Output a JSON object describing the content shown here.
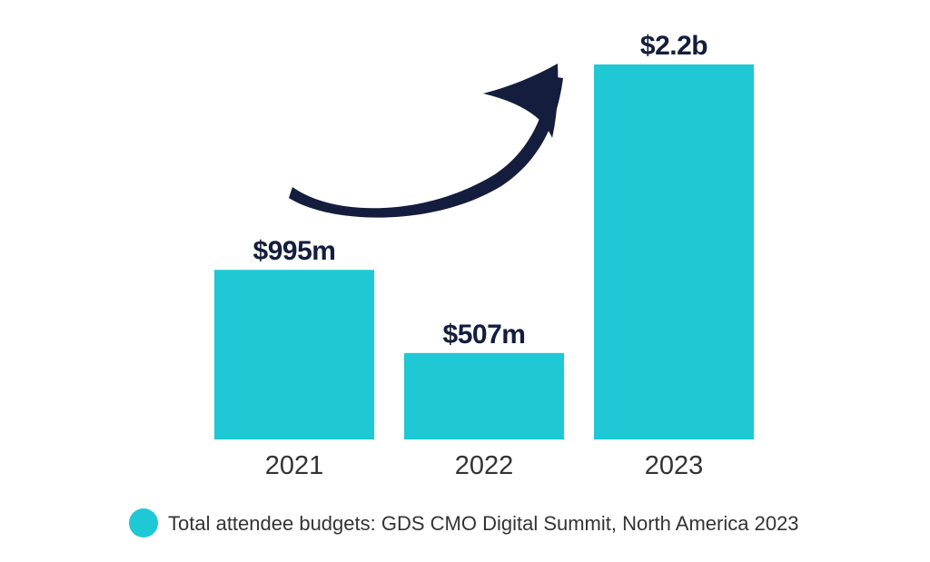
{
  "chart_data": {
    "type": "bar",
    "categories": [
      "2021",
      "2022",
      "2023"
    ],
    "series": [
      {
        "name": "Total attendee budgets: GDS CMO Digital Summit, North America 2023",
        "values": [
          995,
          507,
          2200
        ]
      }
    ],
    "value_labels": [
      "$995m",
      "$507m",
      "$2.2b"
    ],
    "unit": "USD millions",
    "ylim": [
      0,
      2200
    ],
    "grid": false,
    "legend": {
      "placement": "bottom-center",
      "label": "Total attendee budgets: GDS CMO Digital Summit, North America 2023"
    },
    "annotations": [
      {
        "type": "arrow",
        "direction": "upward-curve",
        "from_category": "2021",
        "to_category": "2023"
      }
    ],
    "colors": {
      "bar": "#1ec8d4",
      "value_label": "#141d3d",
      "tick_label": "#333333",
      "legend_text": "#333333",
      "arrow": "#141d3d"
    }
  }
}
